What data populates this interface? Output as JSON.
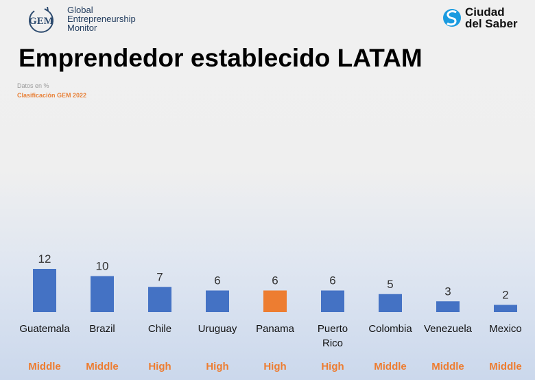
{
  "logos": {
    "gem": {
      "mark": "GEM",
      "text": [
        "Global",
        "Entrepreneurship",
        "Monitor"
      ]
    },
    "ciudad_del_saber": {
      "text": [
        "Ciudad",
        "del Saber"
      ],
      "color": "#1a9be0"
    }
  },
  "header": {
    "title": "Emprendedor establecido LATAM",
    "subtitle": "Datos en %",
    "classification_label": "Clasificación GEM 2022"
  },
  "colors": {
    "bar": "#4472c4",
    "highlight": "#ed7d31",
    "tier_text": "#ed7d31"
  },
  "chart_data": {
    "type": "bar",
    "title": "Emprendedor establecido LATAM",
    "categories": [
      "Guatemala",
      "Brazil",
      "Chile",
      "Uruguay",
      "Panama",
      "Puerto Rico",
      "Colombia",
      "Venezuela",
      "Mexico"
    ],
    "values": [
      12,
      10,
      7,
      6,
      6,
      6,
      5,
      3,
      2
    ],
    "data_labels": [
      "12",
      "10",
      "7",
      "6",
      "6",
      "6",
      "5",
      "3",
      "2"
    ],
    "tiers": [
      "Middle",
      "Middle",
      "High",
      "High",
      "High",
      "High",
      "Middle",
      "Middle",
      "Middle"
    ],
    "highlighted": "Panama",
    "ylim": [
      0,
      12
    ],
    "grid": false,
    "legend": "none"
  }
}
